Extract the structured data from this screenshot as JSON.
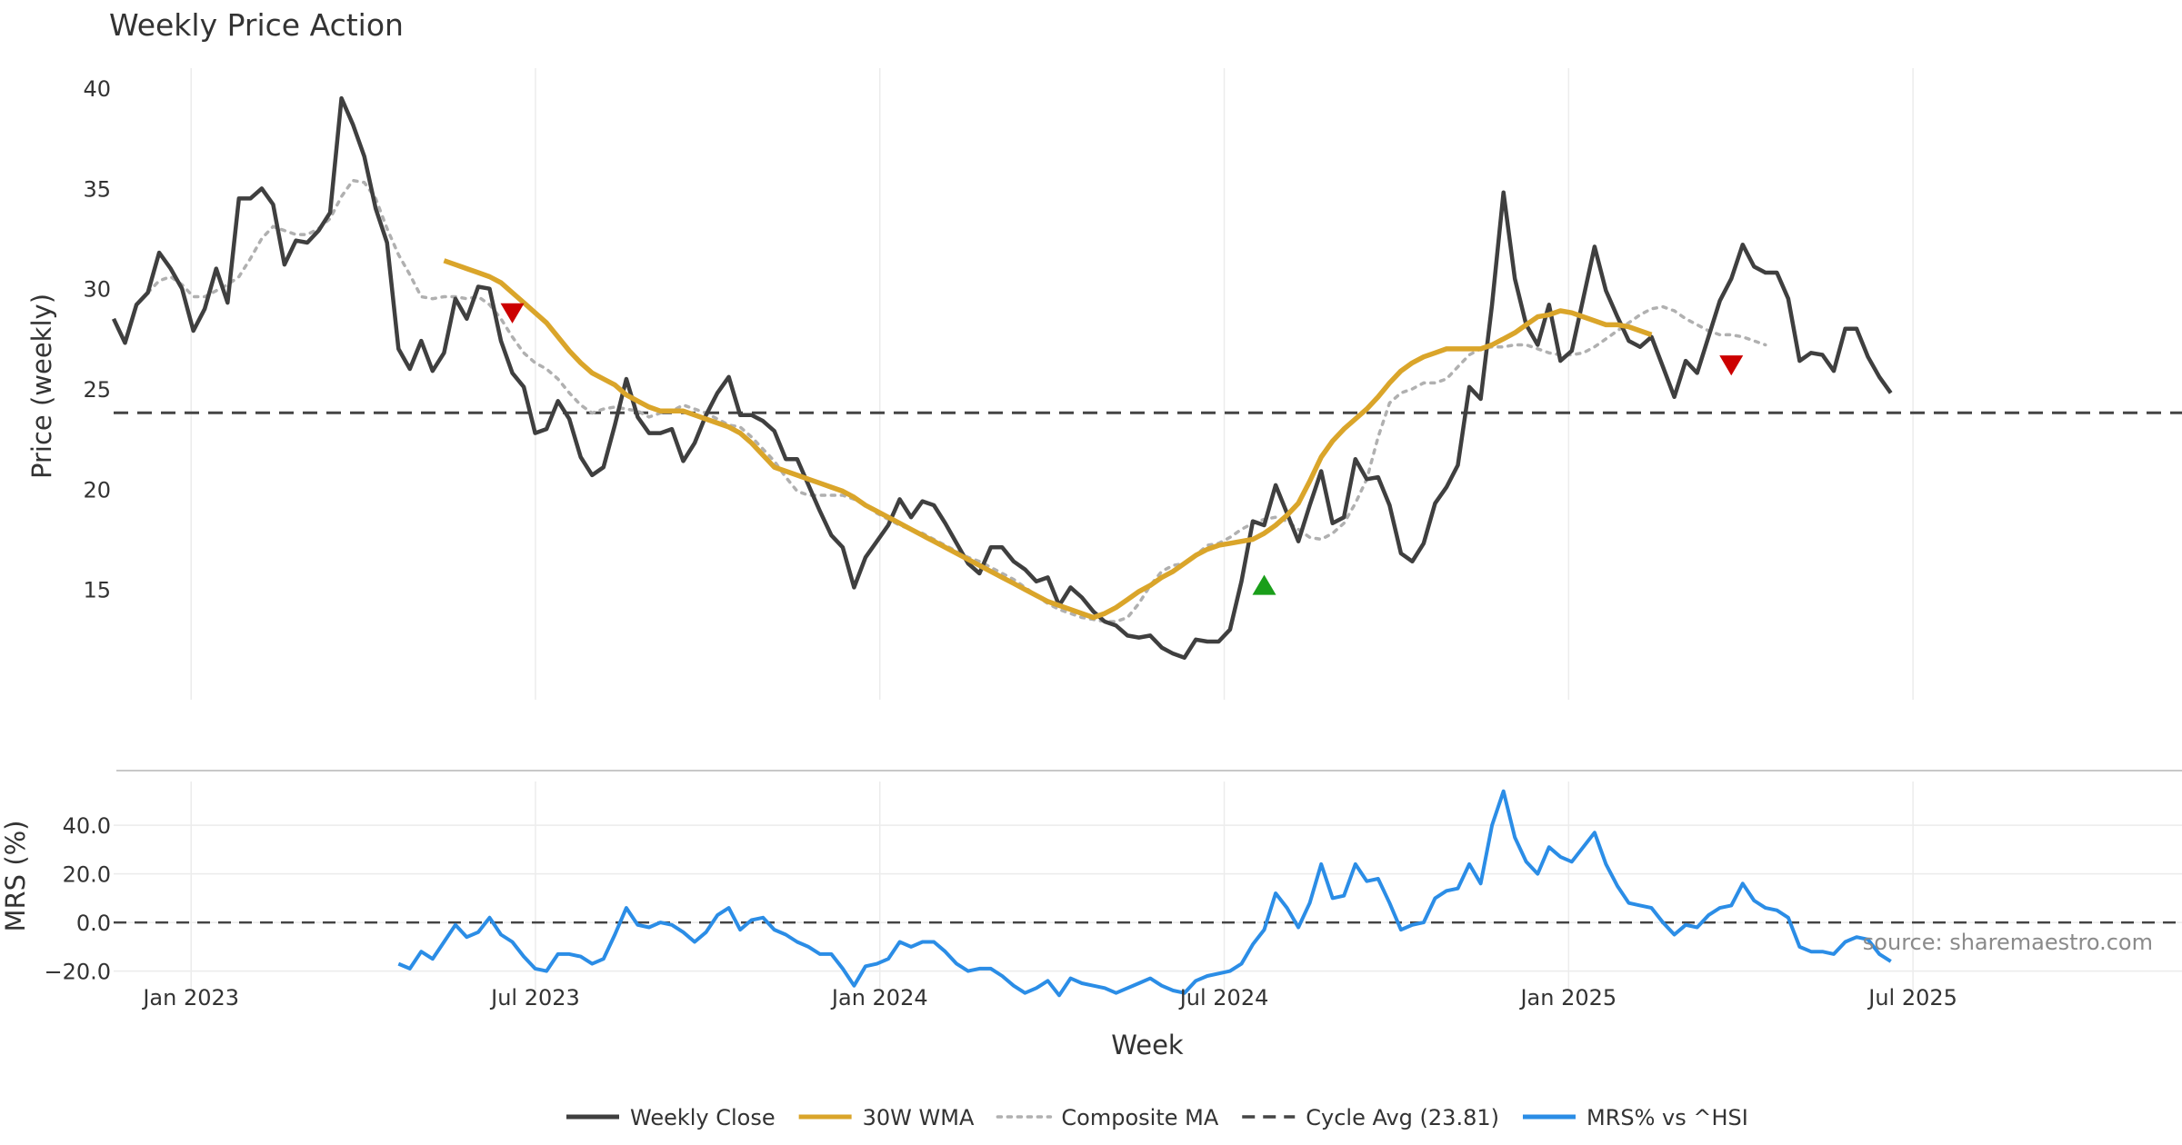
{
  "chart_data": {
    "type": "line",
    "title": "Weekly Price Action",
    "x_labels": [
      "Jan 2023",
      "Jul 2023",
      "Jan 2024",
      "Jul 2024",
      "Jan 2025",
      "Jul 2025"
    ],
    "xlabel": "Week",
    "source": "source: sharemaestro.com",
    "legend_position": "bottom-center",
    "grid": true,
    "cycle_avg": 23.81,
    "price_panel": {
      "ylabel": "Price (weekly)",
      "ylim": [
        9.5,
        41
      ],
      "yticks": [
        15,
        20,
        25,
        30,
        35,
        40
      ],
      "series": [
        {
          "name": "Weekly Close",
          "color": "#3f3f3f",
          "style": "solid",
          "start_week": 0,
          "values": [
            28.5,
            27.3,
            29.2,
            29.8,
            31.8,
            31.0,
            30.0,
            27.9,
            29.0,
            31.0,
            29.3,
            34.5,
            34.5,
            35.0,
            34.2,
            31.2,
            32.4,
            32.3,
            32.9,
            33.8,
            39.5,
            38.2,
            36.6,
            34.0,
            32.3,
            27.0,
            26.0,
            27.4,
            25.9,
            26.8,
            29.5,
            28.5,
            30.1,
            30.0,
            27.4,
            25.8,
            25.1,
            22.8,
            23.0,
            24.4,
            23.5,
            21.6,
            20.7,
            21.1,
            23.2,
            25.5,
            23.6,
            22.8,
            22.8,
            23.0,
            21.4,
            22.3,
            23.7,
            24.8,
            25.6,
            23.7,
            23.7,
            23.4,
            22.9,
            21.5,
            21.5,
            20.2,
            18.9,
            17.7,
            17.1,
            15.1,
            16.6,
            17.4,
            18.2,
            19.5,
            18.6,
            19.4,
            19.2,
            18.3,
            17.3,
            16.3,
            15.8,
            17.1,
            17.1,
            16.4,
            16.0,
            15.4,
            15.6,
            14.2,
            15.1,
            14.6,
            13.9,
            13.4,
            13.2,
            12.7,
            12.6,
            12.7,
            12.1,
            11.8,
            11.6,
            12.5,
            12.4,
            12.4,
            13.0,
            15.4,
            18.4,
            18.2,
            20.2,
            18.8,
            17.4,
            19.2,
            20.9,
            18.3,
            18.6,
            21.5,
            20.5,
            20.6,
            19.2,
            16.8,
            16.4,
            17.3,
            19.3,
            20.1,
            21.2,
            25.1,
            24.5,
            29.2,
            34.8,
            30.5,
            28.2,
            27.2,
            29.2,
            26.4,
            26.9,
            29.5,
            32.1,
            29.9,
            28.6,
            27.4,
            27.1,
            27.6,
            26.1,
            24.6,
            26.4,
            25.8,
            27.6,
            29.4,
            30.5,
            32.2,
            31.1,
            30.8,
            30.8,
            29.5,
            26.4,
            26.8,
            26.7,
            25.9,
            28.0,
            28.0,
            26.6,
            25.6,
            24.8
          ]
        },
        {
          "name": "30W WMA",
          "color": "#daa52a",
          "style": "solid",
          "start_week": 29,
          "values": [
            31.4,
            31.2,
            31.0,
            30.8,
            30.6,
            30.3,
            29.8,
            29.3,
            28.8,
            28.3,
            27.6,
            26.9,
            26.3,
            25.8,
            25.5,
            25.2,
            24.7,
            24.4,
            24.1,
            23.9,
            23.9,
            23.9,
            23.7,
            23.5,
            23.3,
            23.1,
            22.8,
            22.3,
            21.7,
            21.1,
            20.9,
            20.7,
            20.5,
            20.3,
            20.1,
            19.9,
            19.6,
            19.2,
            18.9,
            18.6,
            18.3,
            18.0,
            17.7,
            17.4,
            17.1,
            16.8,
            16.5,
            16.2,
            15.9,
            15.6,
            15.3,
            15.0,
            14.7,
            14.4,
            14.2,
            14.0,
            13.8,
            13.6,
            13.8,
            14.1,
            14.5,
            14.9,
            15.2,
            15.6,
            15.9,
            16.3,
            16.7,
            17.0,
            17.2,
            17.3,
            17.4,
            17.5,
            17.8,
            18.2,
            18.7,
            19.3,
            20.4,
            21.6,
            22.4,
            23.0,
            23.5,
            24.0,
            24.6,
            25.3,
            25.9,
            26.3,
            26.6,
            26.8,
            27.0,
            27.0,
            27.0,
            27.0,
            27.2,
            27.5,
            27.8,
            28.2,
            28.6,
            28.7,
            28.9,
            28.8,
            28.6,
            28.4,
            28.2,
            28.2,
            28.1,
            27.9,
            27.7
          ]
        },
        {
          "name": "Composite MA",
          "color": "#b0b0b0",
          "style": "dotted",
          "start_week": 3,
          "values": [
            29.8,
            30.4,
            30.6,
            30.2,
            29.6,
            29.6,
            29.9,
            30.2,
            30.6,
            31.5,
            32.5,
            33.1,
            32.9,
            32.7,
            32.7,
            33.0,
            33.5,
            34.6,
            35.4,
            35.3,
            34.5,
            33.0,
            31.7,
            30.7,
            29.6,
            29.5,
            29.6,
            29.6,
            29.5,
            29.6,
            29.2,
            28.5,
            27.6,
            26.8,
            26.3,
            26.0,
            25.5,
            24.8,
            24.2,
            23.8,
            24.0,
            24.1,
            24.0,
            23.9,
            23.6,
            23.8,
            23.9,
            24.2,
            24.0,
            23.8,
            23.5,
            23.2,
            23.1,
            22.6,
            22.0,
            21.4,
            20.6,
            19.9,
            19.7,
            19.7,
            19.7,
            19.7,
            19.5,
            19.2,
            18.8,
            18.5,
            18.2,
            18.0,
            17.8,
            17.5,
            17.2,
            16.9,
            16.6,
            16.4,
            16.1,
            15.8,
            15.5,
            15.1,
            14.7,
            14.3,
            14.0,
            13.8,
            13.6,
            13.5,
            13.4,
            13.4,
            13.6,
            14.3,
            15.2,
            15.9,
            16.2,
            16.3,
            16.7,
            17.2,
            17.3,
            17.6,
            18.0,
            18.3,
            18.5,
            18.6,
            18.4,
            18.0,
            17.6,
            17.5,
            17.8,
            18.3,
            19.3,
            20.5,
            22.6,
            24.3,
            24.8,
            25.0,
            25.3,
            25.3,
            25.5,
            26.1,
            26.7,
            27.0,
            27.1,
            27.1,
            27.2,
            27.2,
            27.0,
            26.8,
            26.7,
            26.7,
            26.8,
            27.1,
            27.5,
            27.9,
            28.3,
            28.7,
            29.0,
            29.1,
            28.9,
            28.5,
            28.2,
            27.9,
            27.7,
            27.7,
            27.6,
            27.4,
            27.2
          ]
        }
      ],
      "markers": [
        {
          "type": "sell",
          "color": "#cc0000",
          "week": 35,
          "value": 28.8
        },
        {
          "type": "buy",
          "color": "#1a9e1a",
          "week": 101,
          "value": 15.2
        },
        {
          "type": "sell",
          "color": "#cc0000",
          "week": 142,
          "value": 26.2
        }
      ],
      "reference_line": {
        "name": "Cycle Avg (23.81)",
        "value": 23.81,
        "color": "#444444",
        "style": "dashed"
      }
    },
    "mrs_panel": {
      "ylabel": "MRS (%)",
      "ylim": [
        -28,
        58
      ],
      "yticks": [
        -20.0,
        0.0,
        20.0,
        40.0
      ],
      "ytick_labels": [
        "−20.0",
        "0.0",
        "20.0",
        "40.0"
      ],
      "zero_line": {
        "value": 0,
        "color": "#444444",
        "style": "dashed"
      },
      "series": [
        {
          "name": "MRS% vs ^HSI",
          "color": "#2b8de6",
          "style": "solid",
          "start_week": 25,
          "values": [
            -17,
            -19,
            -12,
            -15,
            -8,
            -1,
            -6,
            -4,
            2,
            -5,
            -8,
            -14,
            -19,
            -20,
            -13,
            -13,
            -14,
            -17,
            -15,
            -5,
            6,
            -1,
            -2,
            0,
            -1,
            -4,
            -8,
            -4,
            3,
            6,
            -3,
            1,
            2,
            -3,
            -5,
            -8,
            -10,
            -13,
            -13,
            -19,
            -26,
            -18,
            -17,
            -15,
            -8,
            -10,
            -8,
            -8,
            -12,
            -17,
            -20,
            -19,
            -19,
            -22,
            -26,
            -29,
            -27,
            -24,
            -30,
            -23,
            -25,
            -26,
            -27,
            -29,
            -27,
            -25,
            -23,
            -26,
            -28,
            -29,
            -24,
            -22,
            -21,
            -20,
            -17,
            -9,
            -3,
            12,
            6,
            -2,
            8,
            24,
            10,
            11,
            24,
            17,
            18,
            8,
            -3,
            -1,
            0,
            10,
            13,
            14,
            24,
            16,
            40,
            54,
            35,
            25,
            20,
            31,
            27,
            25,
            31,
            37,
            24,
            15,
            8,
            7,
            6,
            0,
            -5,
            -1,
            -2,
            3,
            6,
            7,
            16,
            9,
            6,
            5,
            2,
            -10,
            -12,
            -12,
            -13,
            -8,
            -6,
            -7,
            -13,
            -16
          ]
        }
      ]
    },
    "legend": [
      {
        "label": "Weekly Close",
        "color": "#3f3f3f",
        "style": "solid"
      },
      {
        "label": "30W WMA",
        "color": "#daa52a",
        "style": "solid"
      },
      {
        "label": "Composite MA",
        "color": "#b0b0b0",
        "style": "dotted"
      },
      {
        "label": "Cycle Avg (23.81)",
        "color": "#444444",
        "style": "dashed"
      },
      {
        "label": "MRS% vs ^HSI",
        "color": "#2b8de6",
        "style": "solid"
      }
    ]
  }
}
